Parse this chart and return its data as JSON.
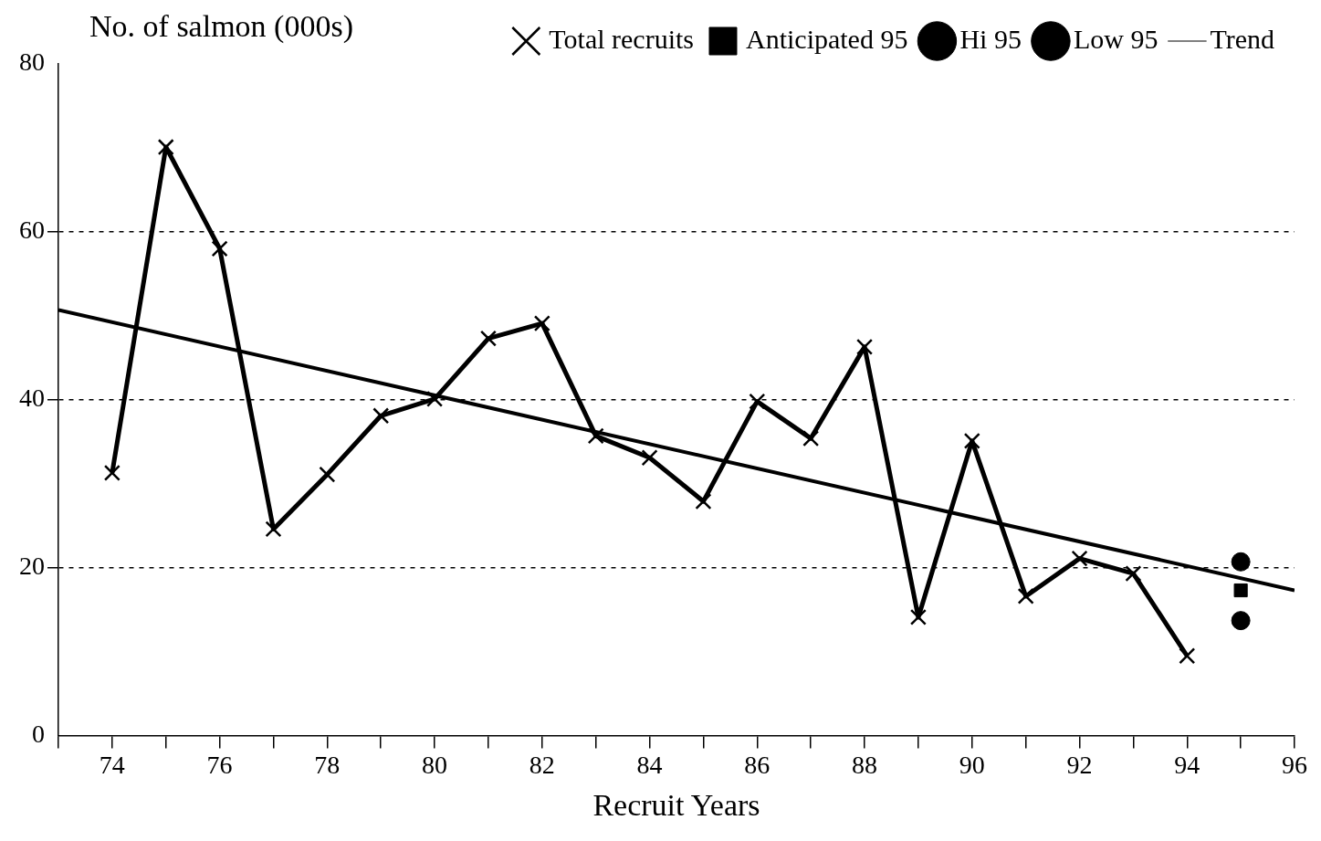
{
  "chart_data": {
    "type": "line",
    "xlabel": "Recruit Years",
    "ylabel": "No. of salmon (000s)",
    "xlim": [
      73,
      96
    ],
    "xticks": [
      {
        "value": 73,
        "label": null
      },
      74,
      {
        "value": 75,
        "label": null
      },
      76,
      {
        "value": 77,
        "label": null
      },
      78,
      {
        "value": 79,
        "label": null
      },
      80,
      {
        "value": 81,
        "label": null
      },
      82,
      {
        "value": 83,
        "label": null
      },
      84,
      {
        "value": 85,
        "label": null
      },
      86,
      {
        "value": 87,
        "label": null
      },
      88,
      {
        "value": 89,
        "label": null
      },
      90,
      {
        "value": 91,
        "label": null
      },
      92,
      {
        "value": 93,
        "label": null
      },
      94,
      {
        "value": 95,
        "label": null
      },
      96
    ],
    "ylim": [
      0,
      80
    ],
    "yticks": [
      0,
      20,
      40,
      60,
      80
    ],
    "grid": "y",
    "line_style": "solid",
    "legend": "top right",
    "series": [
      {
        "name": "Total recruits",
        "type": "line",
        "marker": "cross",
        "color": "#000000",
        "x": [
          74,
          75,
          76,
          77,
          78,
          79,
          80,
          81,
          82,
          83,
          84,
          85,
          86,
          87,
          88,
          89,
          90,
          91,
          92,
          93,
          94
        ],
        "values": [
          31.3,
          70.1,
          58,
          24.6,
          31.1,
          38.1,
          40.1,
          47.3,
          49.1,
          35.7,
          33.1,
          27.9,
          39.8,
          35.4,
          46.3,
          14.1,
          35.1,
          16.6,
          21.1,
          19.3,
          9.5
        ]
      },
      {
        "name": "Anticipated 95",
        "type": "scatter",
        "marker": "square",
        "color": "#000000",
        "x": [
          95
        ],
        "values": [
          17.3
        ]
      },
      {
        "name": "Hi 95",
        "type": "scatter",
        "marker": "circle",
        "color": "#000000",
        "x": [
          95
        ],
        "values": [
          20.7
        ]
      },
      {
        "name": "Low 95",
        "type": "scatter",
        "marker": "circle",
        "color": "#000000",
        "x": [
          95
        ],
        "values": [
          13.7
        ]
      },
      {
        "name": "Trend",
        "type": "line",
        "marker": "none",
        "color": "#000000",
        "x": [
          73,
          96
        ],
        "values": [
          50.7,
          17.3
        ]
      }
    ]
  }
}
